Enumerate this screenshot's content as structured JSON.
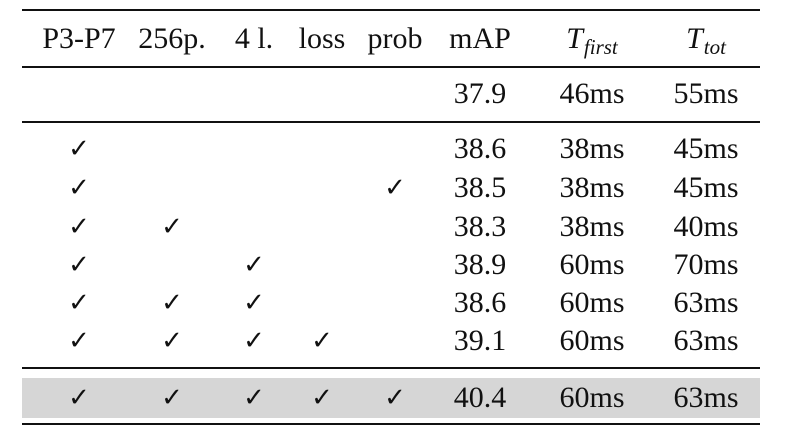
{
  "table": {
    "headers": {
      "p3p7": "P3-P7",
      "p256": "256p.",
      "l4": "4 l.",
      "loss": "loss",
      "prob": "prob",
      "map": "mAP",
      "tfirst_base": "T",
      "tfirst_sub": "first",
      "ttot_base": "T",
      "ttot_sub": "tot"
    },
    "check_symbol": "✓",
    "baseline": {
      "map": "37.9",
      "tfirst": "46ms",
      "ttot": "55ms"
    },
    "rows": [
      {
        "p3p7": true,
        "p256": false,
        "l4": false,
        "loss": false,
        "prob": false,
        "map": "38.6",
        "tfirst": "38ms",
        "ttot": "45ms"
      },
      {
        "p3p7": true,
        "p256": false,
        "l4": false,
        "loss": false,
        "prob": true,
        "map": "38.5",
        "tfirst": "38ms",
        "ttot": "45ms"
      },
      {
        "p3p7": true,
        "p256": true,
        "l4": false,
        "loss": false,
        "prob": false,
        "map": "38.3",
        "tfirst": "38ms",
        "ttot": "40ms"
      },
      {
        "p3p7": true,
        "p256": false,
        "l4": true,
        "loss": false,
        "prob": false,
        "map": "38.9",
        "tfirst": "60ms",
        "ttot": "70ms"
      },
      {
        "p3p7": true,
        "p256": true,
        "l4": true,
        "loss": false,
        "prob": false,
        "map": "38.6",
        "tfirst": "60ms",
        "ttot": "63ms"
      },
      {
        "p3p7": true,
        "p256": true,
        "l4": true,
        "loss": true,
        "prob": false,
        "map": "39.1",
        "tfirst": "60ms",
        "ttot": "63ms"
      }
    ],
    "final": {
      "p3p7": true,
      "p256": true,
      "l4": true,
      "loss": true,
      "prob": true,
      "map": "40.4",
      "tfirst": "60ms",
      "ttot": "63ms"
    }
  }
}
